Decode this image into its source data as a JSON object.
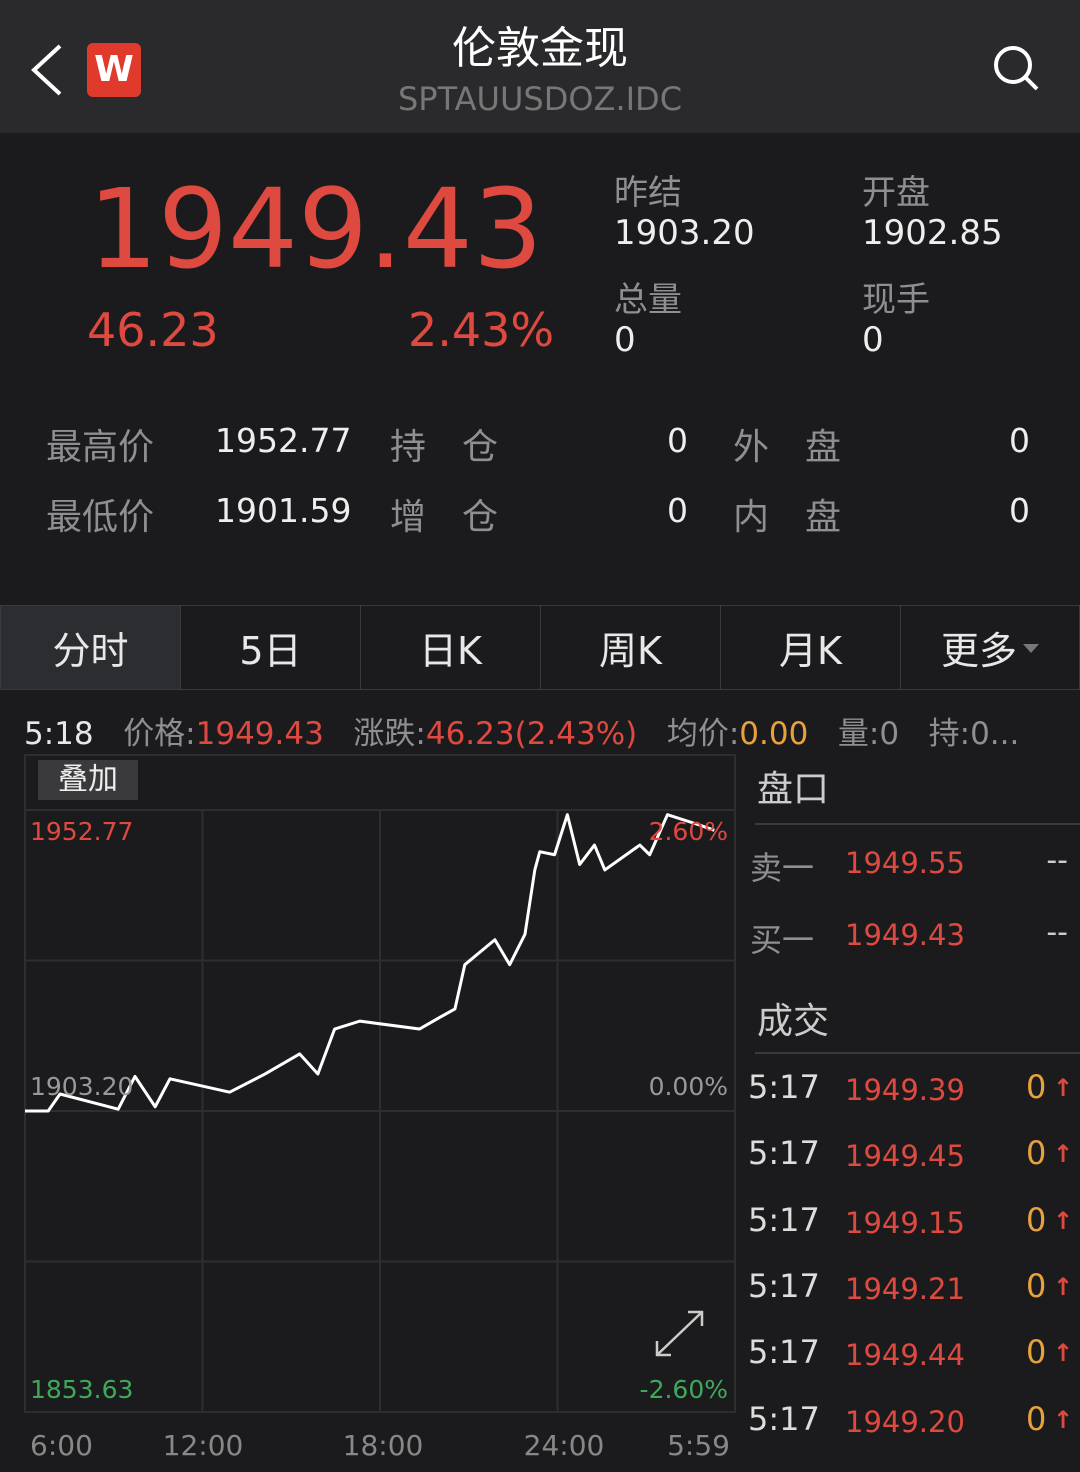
{
  "header": {
    "title": "伦敦金现",
    "symbol": "SPTAUUSDOZ.IDC",
    "logo": "W",
    "icons": [
      "back-chevron-icon",
      "search-icon"
    ]
  },
  "quote": {
    "price": "1949.43",
    "change": "46.23",
    "change_pct": "2.43%",
    "prev_settle_label": "昨结",
    "prev_settle": "1903.20",
    "open_label": "开盘",
    "open": "1902.85",
    "volume_label": "总量",
    "volume": "0",
    "current_hand_label": "现手",
    "current_hand": "0"
  },
  "stats": [
    {
      "label": "最高价",
      "value": "1952.77",
      "label2": "持　仓",
      "value2": "0",
      "label3": "外　盘",
      "value3": "0"
    },
    {
      "label": "最低价",
      "value": "1901.59",
      "label2": "增　仓",
      "value2": "0",
      "label3": "内　盘",
      "value3": "0"
    }
  ],
  "tabs": [
    {
      "label": "分时",
      "active": true
    },
    {
      "label": "5日"
    },
    {
      "label": "日K"
    },
    {
      "label": "周K"
    },
    {
      "label": "月K"
    },
    {
      "label": "更多"
    }
  ],
  "info_bar": {
    "time": "5:18",
    "price_label": "价格:",
    "price": "1949.43",
    "change_label": "涨跌:",
    "change": "46.23(2.43%)",
    "avg_label": "均价:",
    "avg": "0.00",
    "vol_label": "量:0",
    "hold_label": "持:0..."
  },
  "overlay_button": "叠加",
  "colors": {
    "up": "#df4a40",
    "down": "#3fa95a",
    "avg": "#e9a23b",
    "background": "#1b1b1d"
  },
  "chart_data": {
    "type": "line",
    "ylim": [
      1853.63,
      1952.77
    ],
    "base": 1903.2,
    "y_labels_left": {
      "top": "1952.77",
      "mid": "1903.20",
      "bottom": "1853.63"
    },
    "y_labels_right": {
      "top": "2.60%",
      "mid": "0.00%",
      "bottom": "-2.60%"
    },
    "x_ticks": [
      "6:00",
      "12:00",
      "18:00",
      "24:00",
      "5:59"
    ],
    "x": [
      "6:00",
      "6:47",
      "7:11",
      "9:09",
      "9:43",
      "10:24",
      "10:54",
      "12:55",
      "14:07",
      "15:17",
      "15:54",
      "16:28",
      "17:19",
      "19:20",
      "20:01",
      "20:32",
      "20:52",
      "21:53",
      "22:23",
      "22:54",
      "23:14",
      "23:24",
      "23:54",
      "00:20",
      "00:45",
      "01:15",
      "01:36",
      "02:47",
      "03:07",
      "03:43",
      "04:48",
      "05:18"
    ],
    "values": [
      1903.2,
      1903.2,
      1906.0,
      1903.5,
      1908.9,
      1903.9,
      1908.5,
      1906.3,
      1909.3,
      1912.6,
      1909.3,
      1916.7,
      1918.0,
      1916.7,
      1918.6,
      1920.0,
      1927.3,
      1931.4,
      1927.3,
      1932.3,
      1942.9,
      1945.9,
      1945.4,
      1952.0,
      1943.8,
      1947.0,
      1942.9,
      1947.0,
      1945.4,
      1952.0,
      1950.3,
      1949.43
    ]
  },
  "order_book": {
    "title": "盘口",
    "rows": [
      {
        "label": "卖一",
        "price": "1949.55",
        "vol": "--"
      },
      {
        "label": "买一",
        "price": "1949.43",
        "vol": "--"
      }
    ]
  },
  "trades": {
    "title": "成交",
    "rows": [
      {
        "time": "5:17",
        "price": "1949.39",
        "vol": "0"
      },
      {
        "time": "5:17",
        "price": "1949.45",
        "vol": "0"
      },
      {
        "time": "5:17",
        "price": "1949.15",
        "vol": "0"
      },
      {
        "time": "5:17",
        "price": "1949.21",
        "vol": "0"
      },
      {
        "time": "5:17",
        "price": "1949.44",
        "vol": "0"
      },
      {
        "time": "5:17",
        "price": "1949.20",
        "vol": "0"
      }
    ]
  }
}
